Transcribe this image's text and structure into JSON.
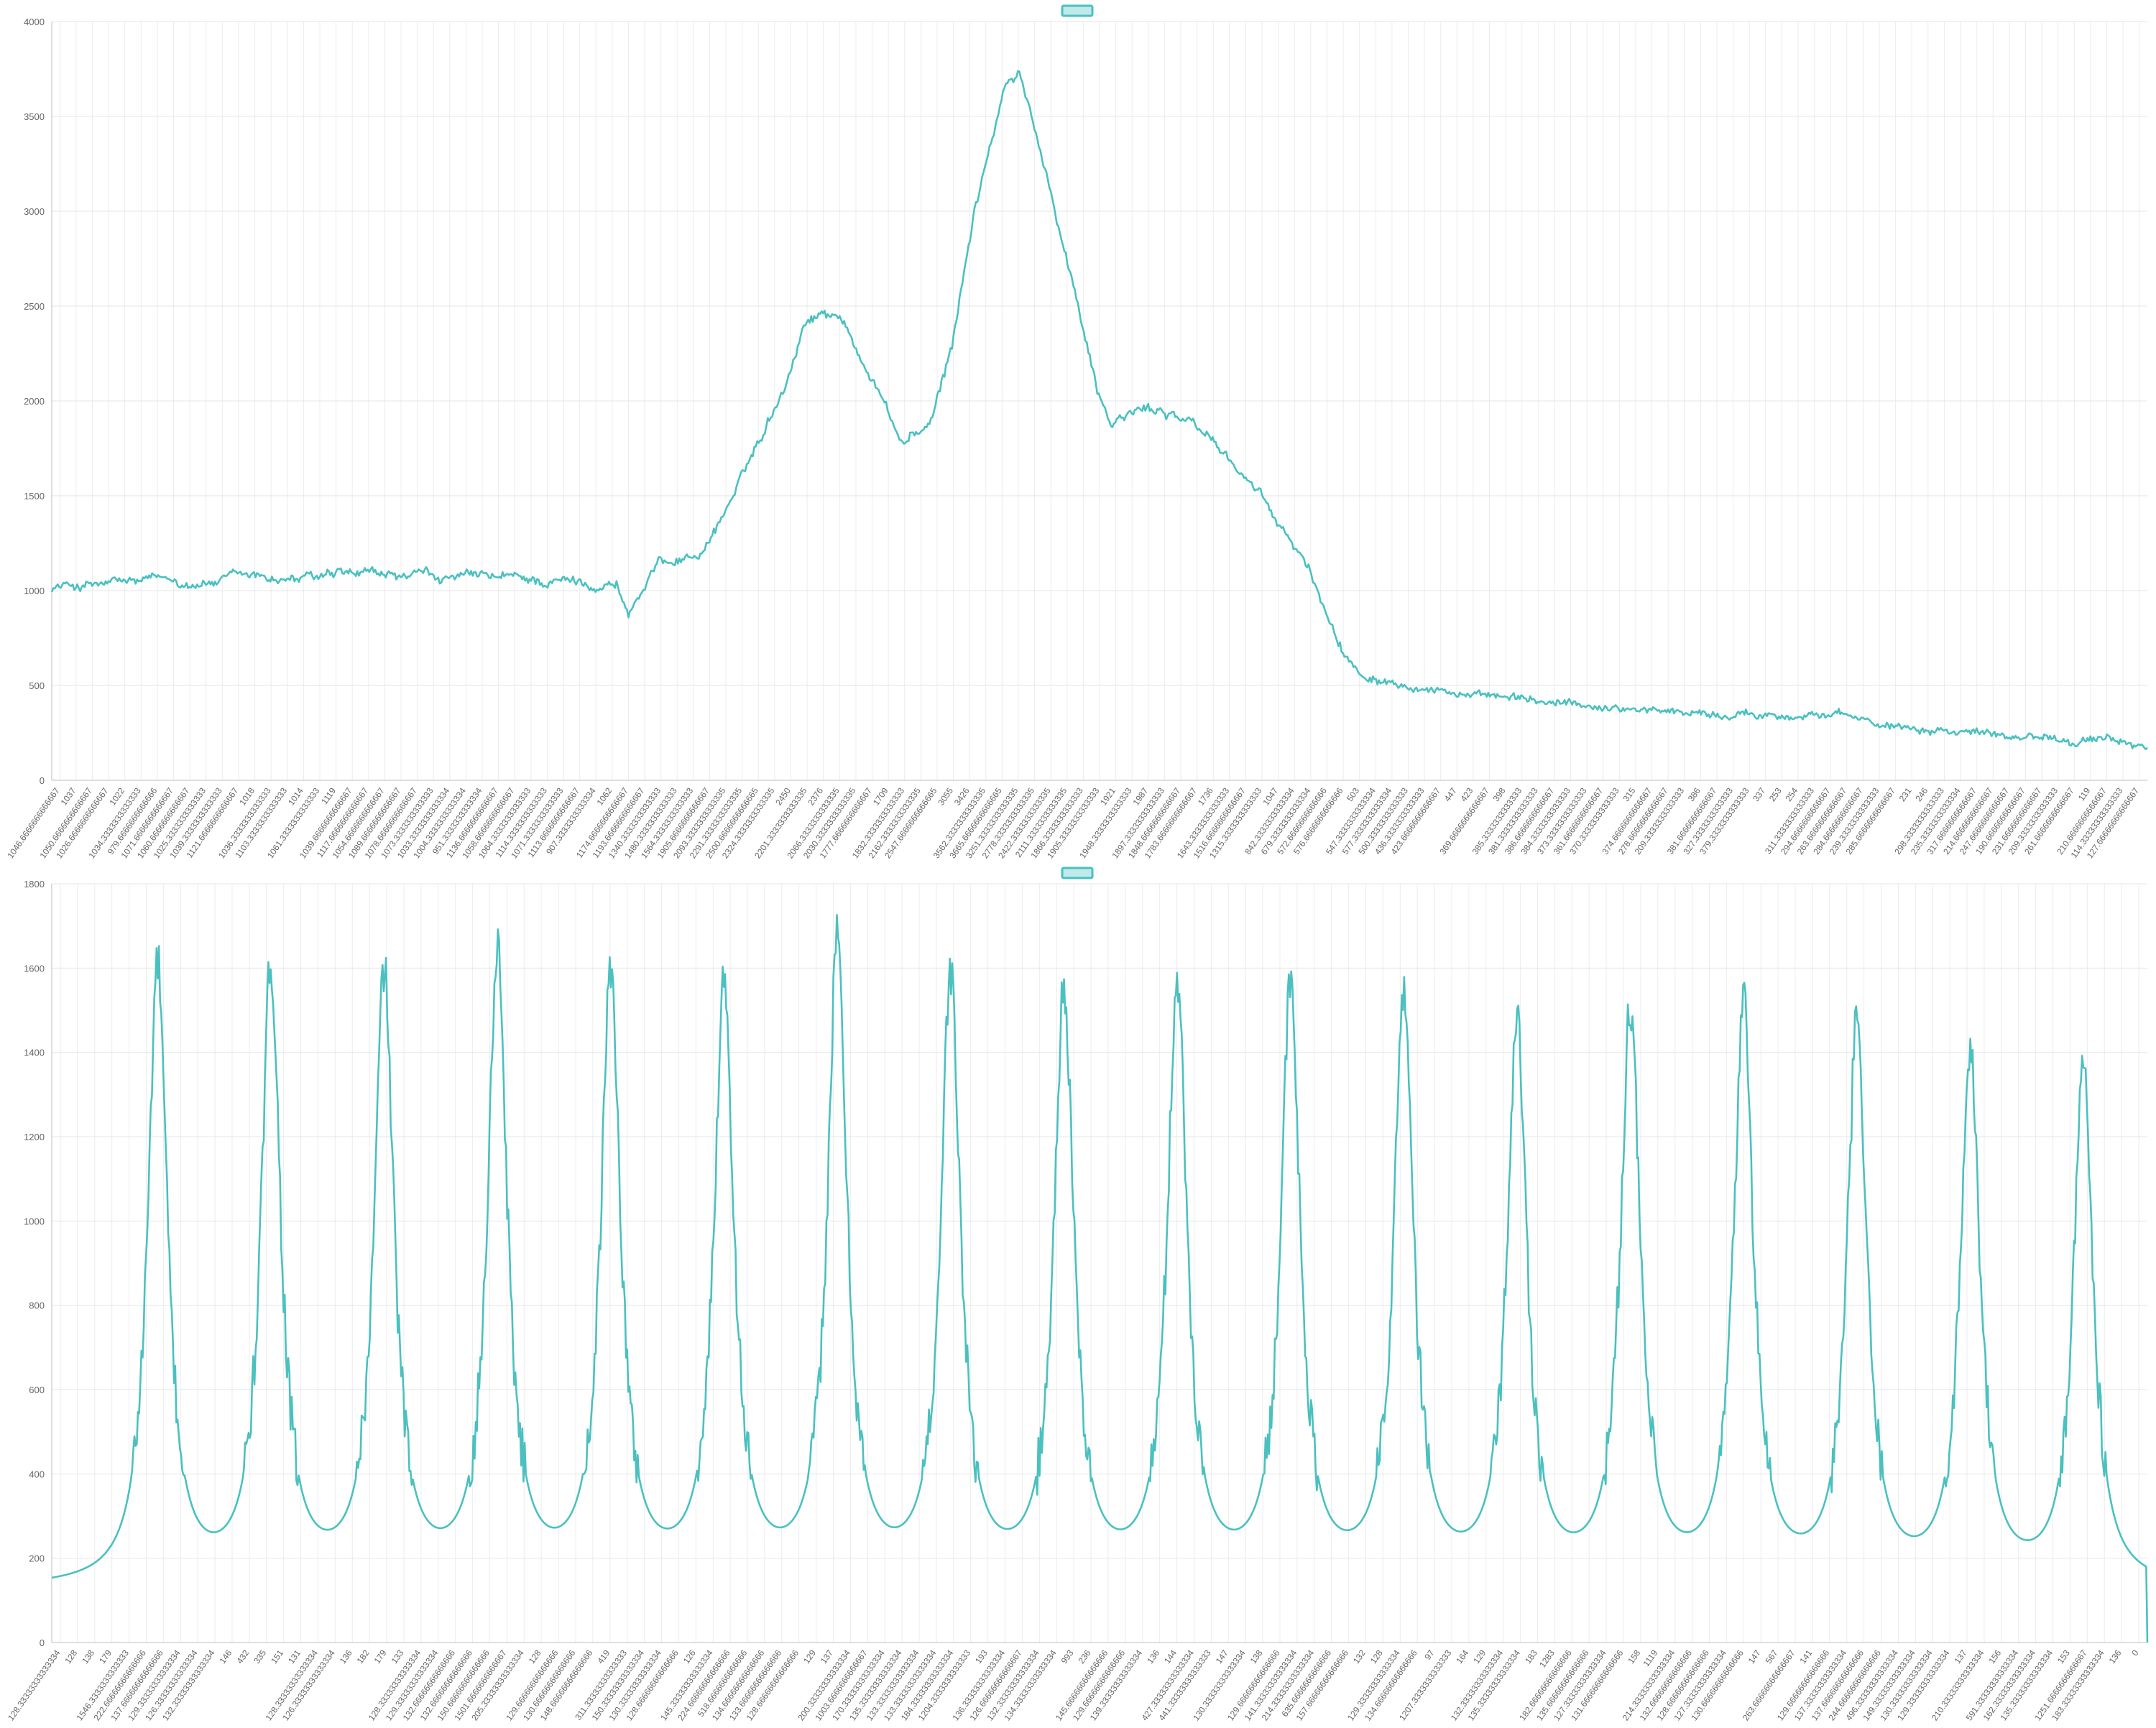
{
  "chart_data": [
    {
      "type": "line",
      "title": "",
      "xlabel": "",
      "ylabel": "",
      "legend": {
        "position": "top",
        "label": ""
      },
      "grid": true,
      "color": "#4bc0c0",
      "ylim": [
        0,
        4000
      ],
      "yticks": [
        0,
        500,
        1000,
        1500,
        2000,
        2500,
        3000,
        3500,
        4000
      ],
      "x_tick_labels": [
        "1046.6666666666667",
        "1037",
        "1050.6666666666667",
        "1026.6666666666667",
        "1022",
        "1034.3333333333333",
        "979.6666666666666",
        "1071.6666666666667",
        "1060.6666666666667",
        "1025.3333333333333",
        "1039.3333333333333",
        "1121.6666666666667",
        "1018",
        "1036.3333333333333",
        "1103.3333333333333",
        "1014",
        "1061.3333333333333",
        "1119",
        "1039.6666666666667",
        "1117.6666666666667",
        "1054.6666666666667",
        "1089.6666666666667",
        "1078.6666666666667",
        "1073.3333333333333",
        "1033.3333333333334",
        "1004.3333333333334",
        "951.3333333333334",
        "1136.6666666666667",
        "1058.6666666666667",
        "1064.3333333333333",
        "1114.3333333333333",
        "1071.3333333333333",
        "1113.6666666666667",
        "907.3333333333334",
        "1062",
        "1174.6666666666667",
        "1193.6666666666667",
        "1340.3333333333333",
        "1480.3333333333333",
        "1564.3333333333333",
        "1905.6666666666667",
        "2093.3333333333335",
        "2291.3333333333335",
        "2500.6666666666665",
        "2324.3333333333335",
        "2450",
        "2201.3333333333335",
        "2376",
        "2066.3333333333335",
        "2030.3333333333335",
        "1777.6666666666667",
        "1709",
        "1832.3333333333333",
        "2162.3333333333335",
        "2547.6666666666665",
        "3055",
        "3426",
        "3562.3333333333335",
        "3665.6666666666665",
        "3251.3333333333335",
        "2778.3333333333335",
        "2422.3333333333335",
        "2111.3333333333335",
        "1866.3333333333333",
        "1905.3333333333333",
        "1921",
        "1948.3333333333333",
        "1987",
        "1897.3333333333333",
        "1848.6666666666667",
        "1783.6666666666667",
        "1736",
        "1643.3333333333333",
        "1516.6666666666667",
        "1315.3333333333333",
        "1047",
        "842.3333333333334",
        "679.3333333333334",
        "572.6666666666666",
        "576.6666666666666",
        "503",
        "547.3333333333334",
        "577.3333333333334",
        "500.3333333333333",
        "436.3333333333333",
        "423.6666666666667",
        "447",
        "423",
        "369.6666666666667",
        "398",
        "385.3333333333333",
        "381.3333333333333",
        "386.6666666666667",
        "384.3333333333333",
        "373.3333333333333",
        "361.6666666666667",
        "370.3333333333333",
        "315",
        "374.6666666666667",
        "278.6666666666667",
        "209.3333333333333",
        "386",
        "381.6666666666667",
        "327.3333333333333",
        "379.3333333333333",
        "337",
        "253",
        "254",
        "311.3333333333333",
        "294.6666666666667",
        "263.6666666666667",
        "284.6666666666667",
        "239.3333333333333",
        "285.6666666666667",
        "231",
        "246",
        "298.3333333333333",
        "235.3333333333334",
        "317.6666666666667",
        "214.6666666666667",
        "247.6666666666667",
        "190.6666666666667",
        "231.6666666666667",
        "209.3333333333333",
        "261.6666666666667",
        "119",
        "210.6666666666667",
        "114.33333333333333",
        "127.66666666666667"
      ],
      "series": [
        {
          "values": []
        }
      ]
    },
    {
      "type": "line",
      "title": "",
      "xlabel": "",
      "ylabel": "",
      "legend": {
        "position": "top",
        "label": ""
      },
      "grid": true,
      "color": "#4bc0c0",
      "ylim": [
        0,
        1800
      ],
      "yticks": [
        0,
        200,
        400,
        600,
        800,
        1000,
        1200,
        1400,
        1600,
        1800
      ],
      "peaks": [
        1590,
        1575,
        1560,
        1615,
        1560,
        1540,
        1625,
        1548,
        1520,
        1535,
        1515,
        1510,
        1445,
        1478,
        1485,
        1435,
        1385,
        1355
      ],
      "baseline": 126,
      "x_tick_labels": [
        "128.33333333333334",
        "128",
        "138",
        "179",
        "1546.3333333333333",
        "222.66666666666666",
        "137.66666666666666",
        "129.33333333333334",
        "126.33333333333334",
        "132.33333333333334",
        "146",
        "432",
        "335",
        "151",
        "131",
        "128.33333333333334",
        "126.33333333333334",
        "136",
        "182",
        "179",
        "133",
        "128.33333333333334",
        "129.33333333333334",
        "132.66666666666666",
        "132.66666666666666",
        "150.66666666666666",
        "1501.6666666666667",
        "205.33333333333334",
        "128",
        "129.66666666666666",
        "130.66666666666666",
        "148.66666666666666",
        "419",
        "311.33333333333333",
        "150.33333333333334",
        "130.33333333333334",
        "128.66666666666666",
        "126",
        "145.33333333333334",
        "224.66666666666666",
        "518.6666666666666",
        "134.66666666666666",
        "133.66666666666666",
        "128.66666666666666",
        "129",
        "137",
        "200.33333333333334",
        "1003.6666666666667",
        "170.33333333333334",
        "135.33333333333334",
        "133.33333333333334",
        "133.33333333333334",
        "184.33333333333334",
        "1204.3333333333333",
        "193",
        "136.33333333333334",
        "126.66666666666667",
        "132.33333333333334",
        "134.33333333333334",
        "993",
        "236",
        "145.66666666666666",
        "129.66666666666666",
        "139.33333333333334",
        "136",
        "144",
        "427.33333333333334",
        "441.33333333333333",
        "147",
        "130.33333333333334",
        "138",
        "129.66666666666666",
        "141.33333333333334",
        "214.33333333333334",
        "635.6666666666666",
        "157.66666666666666",
        "132",
        "128",
        "129.33333333333334",
        "134.66666666666666",
        "97",
        "1207.3333333333333",
        "164",
        "129",
        "132.33333333333334",
        "135.33333333333334",
        "183",
        "1283",
        "182.66666666666666",
        "135.66666666666666",
        "127.33333333333334",
        "131.66666666666666",
        "158",
        "1119",
        "214.33333333333334",
        "132.66666666666666",
        "128.66666666666666",
        "127.33333333333334",
        "130.66666666666666",
        "147",
        "567",
        "263.66666666666667",
        "141",
        "129.66666666666666",
        "137.33333333333334",
        "137.66666666666666",
        "244.66666666666666",
        "496.33333333333334",
        "149.33333333333334",
        "130.33333333333334",
        "129.33333333333334",
        "137",
        "210.33333333333334",
        "156",
        "591.33333333333334",
        "162.33333333333334",
        "135.33333333333334",
        "153",
        "1251.6666666666667",
        "183.33333333333334",
        "136",
        "0"
      ],
      "series": [
        {
          "values": []
        }
      ]
    }
  ]
}
